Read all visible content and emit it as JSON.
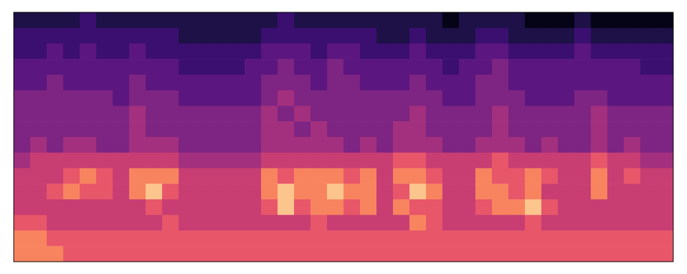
{
  "chart_data": {
    "type": "heatmap",
    "tick_labels": false,
    "color_range": [
      0,
      9
    ],
    "cells": [
      [
        1,
        1,
        1,
        1,
        2,
        1,
        1,
        1,
        1,
        1,
        1,
        1,
        1,
        1,
        1,
        1,
        2,
        1,
        1,
        1,
        1,
        1,
        1,
        1,
        1,
        1,
        0,
        1,
        1,
        1,
        1,
        0,
        0,
        0,
        1,
        0,
        0,
        0,
        0,
        0
      ],
      [
        2,
        2,
        2,
        2,
        2,
        2,
        2,
        2,
        2,
        2,
        1,
        1,
        1,
        1,
        1,
        2,
        2,
        2,
        2,
        2,
        2,
        2,
        1,
        1,
        2,
        1,
        1,
        1,
        2,
        2,
        1,
        1,
        1,
        1,
        2,
        1,
        1,
        1,
        1,
        1
      ],
      [
        2,
        2,
        3,
        2,
        3,
        2,
        2,
        3,
        2,
        2,
        2,
        2,
        2,
        2,
        2,
        3,
        3,
        3,
        2,
        3,
        3,
        2,
        2,
        2,
        3,
        2,
        2,
        2,
        3,
        3,
        2,
        2,
        2,
        2,
        3,
        2,
        2,
        2,
        2,
        2
      ],
      [
        3,
        3,
        3,
        3,
        3,
        3,
        3,
        3,
        3,
        3,
        2,
        2,
        2,
        2,
        3,
        3,
        4,
        3,
        3,
        4,
        3,
        3,
        3,
        3,
        3,
        3,
        2,
        3,
        3,
        4,
        3,
        3,
        3,
        3,
        3,
        3,
        3,
        3,
        2,
        2
      ],
      [
        3,
        3,
        4,
        3,
        3,
        3,
        3,
        4,
        3,
        3,
        3,
        3,
        3,
        3,
        3,
        4,
        4,
        4,
        3,
        4,
        4,
        3,
        3,
        3,
        4,
        3,
        3,
        3,
        4,
        4,
        3,
        3,
        3,
        3,
        3,
        3,
        3,
        3,
        3,
        3
      ],
      [
        4,
        4,
        4,
        4,
        4,
        4,
        3,
        4,
        4,
        4,
        3,
        3,
        3,
        3,
        3,
        4,
        5,
        4,
        4,
        4,
        4,
        4,
        4,
        4,
        4,
        4,
        3,
        3,
        4,
        4,
        4,
        3,
        3,
        3,
        4,
        4,
        3,
        3,
        3,
        3
      ],
      [
        4,
        4,
        4,
        4,
        4,
        4,
        4,
        5,
        4,
        4,
        4,
        4,
        4,
        4,
        4,
        5,
        4,
        5,
        4,
        4,
        4,
        4,
        4,
        4,
        5,
        4,
        4,
        4,
        4,
        5,
        4,
        4,
        4,
        4,
        4,
        5,
        4,
        4,
        4,
        4
      ],
      [
        4,
        4,
        4,
        4,
        4,
        4,
        4,
        5,
        4,
        4,
        4,
        4,
        4,
        4,
        4,
        5,
        5,
        4,
        5,
        4,
        4,
        4,
        4,
        5,
        5,
        4,
        4,
        4,
        4,
        5,
        4,
        4,
        4,
        4,
        4,
        5,
        4,
        4,
        4,
        4
      ],
      [
        4,
        5,
        4,
        5,
        5,
        4,
        4,
        5,
        5,
        5,
        4,
        4,
        4,
        4,
        4,
        5,
        5,
        5,
        5,
        5,
        4,
        5,
        4,
        5,
        5,
        5,
        4,
        4,
        5,
        5,
        5,
        4,
        5,
        4,
        4,
        5,
        4,
        5,
        4,
        4
      ],
      [
        5,
        6,
        6,
        6,
        6,
        6,
        6,
        6,
        6,
        6,
        5,
        5,
        5,
        5,
        5,
        6,
        6,
        6,
        6,
        6,
        6,
        6,
        6,
        7,
        7,
        6,
        6,
        6,
        6,
        7,
        6,
        6,
        6,
        6,
        6,
        7,
        6,
        6,
        5,
        5
      ],
      [
        6,
        6,
        6,
        7,
        8,
        7,
        6,
        8,
        8,
        8,
        6,
        6,
        6,
        6,
        6,
        8,
        7,
        8,
        8,
        8,
        7,
        8,
        6,
        8,
        8,
        7,
        6,
        6,
        8,
        7,
        7,
        8,
        7,
        6,
        6,
        8,
        6,
        7,
        6,
        6
      ],
      [
        6,
        6,
        7,
        8,
        7,
        7,
        6,
        8,
        9,
        7,
        6,
        6,
        6,
        6,
        6,
        8,
        9,
        8,
        8,
        9,
        8,
        8,
        6,
        7,
        9,
        8,
        6,
        6,
        8,
        8,
        7,
        8,
        6,
        6,
        6,
        8,
        6,
        6,
        6,
        6
      ],
      [
        6,
        6,
        6,
        6,
        6,
        6,
        6,
        6,
        7,
        6,
        6,
        6,
        6,
        6,
        6,
        7,
        9,
        7,
        8,
        8,
        7,
        8,
        6,
        8,
        7,
        7,
        6,
        6,
        7,
        8,
        8,
        9,
        7,
        6,
        6,
        6,
        6,
        6,
        6,
        6
      ],
      [
        7,
        7,
        6,
        6,
        6,
        6,
        6,
        6,
        6,
        7,
        6,
        6,
        6,
        6,
        6,
        6,
        6,
        6,
        7,
        6,
        6,
        6,
        6,
        6,
        8,
        7,
        6,
        6,
        6,
        6,
        6,
        7,
        6,
        6,
        6,
        6,
        6,
        6,
        6,
        6
      ],
      [
        8,
        8,
        7,
        7,
        7,
        7,
        7,
        7,
        7,
        7,
        7,
        7,
        7,
        7,
        7,
        7,
        7,
        7,
        7,
        7,
        7,
        7,
        7,
        7,
        7,
        7,
        7,
        7,
        7,
        7,
        7,
        7,
        7,
        7,
        7,
        7,
        7,
        7,
        7,
        7
      ],
      [
        8,
        8,
        8,
        7,
        7,
        7,
        7,
        7,
        7,
        7,
        7,
        7,
        7,
        7,
        7,
        7,
        7,
        7,
        7,
        7,
        7,
        7,
        7,
        7,
        7,
        7,
        7,
        7,
        7,
        7,
        7,
        7,
        7,
        7,
        7,
        7,
        7,
        7,
        7,
        7
      ]
    ]
  }
}
